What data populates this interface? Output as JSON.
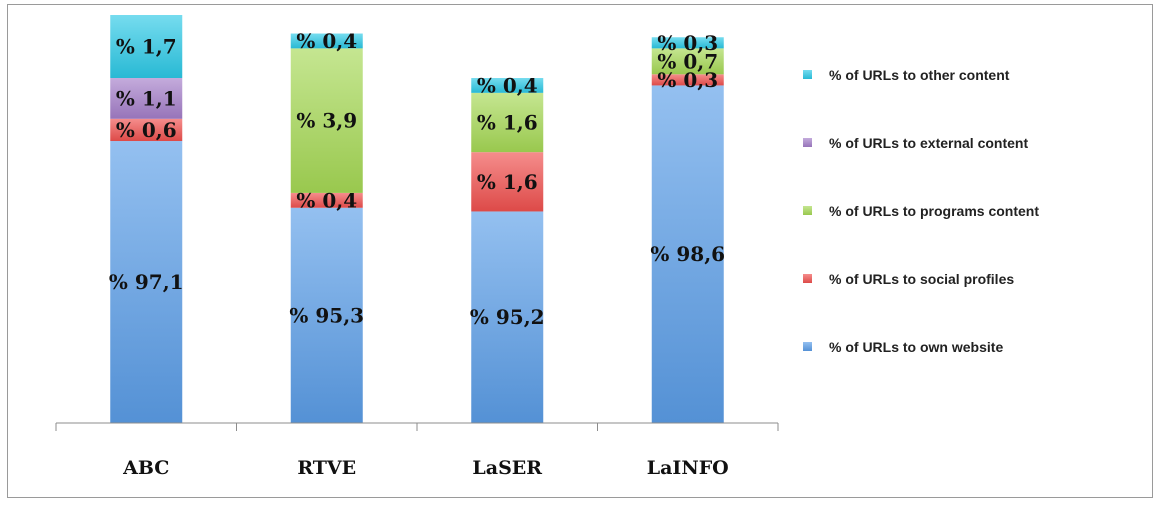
{
  "chart_data": {
    "type": "bar",
    "stacked": true,
    "categories": [
      "ABC",
      "RTVE",
      "LaSER",
      "LaINFO"
    ],
    "series": [
      {
        "name": "% of URLs to own website",
        "values": [
          97.1,
          95.3,
          95.2,
          98.6
        ],
        "labels": [
          "% 97,1",
          "% 95,3",
          "% 95,2",
          "% 98,6"
        ],
        "color": "#5b9ee8"
      },
      {
        "name": "% of URLs to social profiles",
        "values": [
          0.6,
          0.4,
          1.6,
          0.3
        ],
        "labels": [
          "% 0,6",
          "% 0,4",
          "% 1,6",
          "% 0,3"
        ],
        "color": "#f0504e"
      },
      {
        "name": "% of URLs to programs content",
        "values": [
          0,
          3.9,
          1.6,
          0.7
        ],
        "labels": [
          "",
          "% 3,9",
          "% 1,6",
          "% 0,7"
        ],
        "color": "#a6d955"
      },
      {
        "name": "% of URLs to external content",
        "values": [
          1.1,
          0,
          0,
          0
        ],
        "labels": [
          "% 1,1",
          "",
          "",
          ""
        ],
        "color": "#a47ec9"
      },
      {
        "name": "% of URLs to other content",
        "values": [
          1.7,
          0.4,
          0.4,
          0.3
        ],
        "labels": [
          "% 1,7",
          "% 0,4",
          "% 0,4",
          "% 0,3"
        ],
        "color": "#2cc9e6"
      }
    ],
    "legend_order": [
      4,
      3,
      2,
      1,
      0
    ],
    "legend_position": "right",
    "grid": false,
    "title": "",
    "xlabel": "",
    "ylabel": ""
  }
}
